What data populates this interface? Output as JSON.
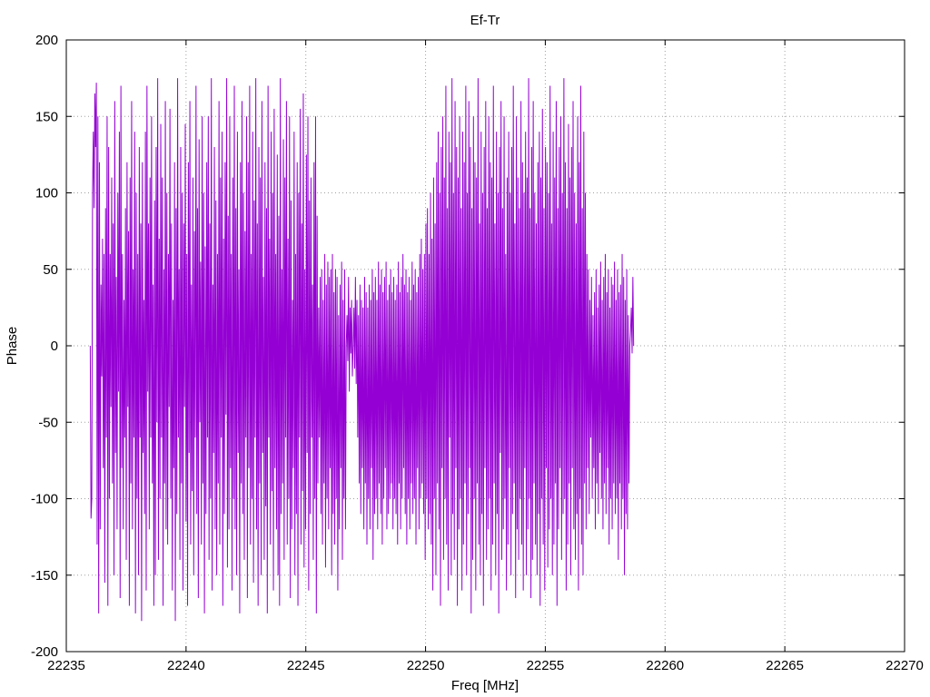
{
  "chart_data": {
    "type": "line",
    "title": "Ef-Tr",
    "xlabel": "Freq [MHz]",
    "ylabel": "Phase",
    "xlim": [
      22235,
      22270
    ],
    "ylim": [
      -200,
      200
    ],
    "xticks": [
      "22235",
      "22240",
      "22245",
      "22250",
      "22255",
      "22260",
      "22265",
      "22270"
    ],
    "yticks": [
      "200",
      "150",
      "100",
      "50",
      "0",
      "-50",
      "-100",
      "-150",
      "-200"
    ],
    "grid": true,
    "line_color": "#9400d3",
    "series": [
      {
        "x_start": 22236.0,
        "x_step": 0.032,
        "values": [
          0,
          -113,
          -100,
          100,
          140,
          90,
          165,
          130,
          172,
          -130,
          150,
          -175,
          120,
          -120,
          40,
          -20,
          70,
          -80,
          60,
          -155,
          90,
          -60,
          150,
          -170,
          130,
          -100,
          60,
          -40,
          110,
          -90,
          80,
          -150,
          160,
          -70,
          45,
          -120,
          100,
          -30,
          140,
          -165,
          170,
          -80,
          60,
          -120,
          30,
          -60,
          90,
          -140,
          120,
          -40,
          75,
          -170,
          110,
          -90,
          160,
          -120,
          50,
          -60,
          140,
          -175,
          100,
          -100,
          60,
          -150,
          130,
          -60,
          80,
          -180,
          120,
          -70,
          30,
          -110,
          140,
          -160,
          170,
          -30,
          80,
          -120,
          110,
          -60,
          150,
          -90,
          40,
          -170,
          95,
          -150,
          130,
          -50,
          175,
          -140,
          70,
          -100,
          145,
          -60,
          110,
          -170,
          50,
          -90,
          160,
          -120,
          100,
          -130,
          60,
          -40,
          155,
          -100,
          80,
          -160,
          30,
          -80,
          120,
          -180,
          90,
          -110,
          175,
          -60,
          50,
          -140,
          130,
          -90,
          100,
          -160,
          80,
          -40,
          145,
          -115,
          60,
          -170,
          120,
          -70,
          160,
          -130,
          40,
          -95,
          110,
          -150,
          75,
          -60,
          170,
          -110,
          90,
          -165,
          135,
          -50,
          55,
          -130,
          150,
          -90,
          100,
          -175,
          65,
          -110,
          120,
          -60,
          150,
          -140,
          80,
          -100,
          175,
          -160,
          40,
          -70,
          130,
          -120,
          95,
          -150,
          60,
          -90,
          160,
          -130,
          110,
          -60,
          140,
          -170,
          70,
          -110,
          120,
          -45,
          175,
          -145,
          85,
          -120,
          150,
          -80,
          60,
          -160,
          110,
          -100,
          170,
          -120,
          90,
          -150,
          140,
          -70,
          50,
          -175,
          120,
          -90,
          160,
          -110,
          100,
          -140,
          75,
          -60,
          150,
          -165,
          120,
          -80,
          170,
          -130,
          60,
          -100,
          140,
          -155,
          95,
          -60,
          175,
          -120,
          80,
          -170,
          130,
          -90,
          110,
          -150,
          160,
          -70,
          45,
          -140,
          120,
          -105,
          90,
          -175,
          170,
          -60,
          70,
          -130,
          140,
          -95,
          100,
          -160,
          155,
          -80,
          60,
          -120,
          125,
          -150,
          85,
          -170,
          175,
          -110,
          50,
          -90,
          135,
          -140,
          110,
          -60,
          160,
          -130,
          70,
          -100,
          150,
          -165,
          95,
          -120,
          30,
          -80,
          140,
          -150,
          60,
          -110,
          120,
          -170,
          100,
          -60,
          155,
          -130,
          80,
          -95,
          165,
          -145,
          50,
          -120,
          125,
          -70,
          150,
          -160,
          95,
          -110,
          110,
          -60,
          40,
          -140,
          120,
          -100,
          150,
          -175,
          85,
          -90,
          25,
          -60,
          45,
          -110,
          50,
          -130,
          30,
          -90,
          60,
          -145,
          40,
          -100,
          55,
          -120,
          45,
          -80,
          50,
          -150,
          60,
          -110,
          35,
          -130,
          50,
          -100,
          45,
          -160,
          20,
          -120,
          40,
          -80,
          55,
          -140,
          30,
          -100,
          50,
          -120,
          0,
          20,
          -10,
          45,
          -30,
          25,
          -5,
          30,
          -20,
          0,
          25,
          -15,
          45,
          -25,
          30,
          -60,
          20,
          -90,
          40,
          -110,
          30,
          -80,
          25,
          -120,
          45,
          -90,
          35,
          -130,
          25,
          -100,
          40,
          -120,
          30,
          -80,
          50,
          -140,
          35,
          -110,
          45,
          -100,
          30,
          -120,
          55,
          -90,
          40,
          -110,
          50,
          -130,
          35,
          -100,
          45,
          -80,
          55,
          -120,
          30,
          -110,
          40,
          -100,
          50,
          -90,
          35,
          -120,
          45,
          -100,
          30,
          -110,
          40,
          -130,
          55,
          -90,
          35,
          -120,
          45,
          -100,
          60,
          -80,
          40,
          -110,
          50,
          -130,
          35,
          -100,
          45,
          -120,
          30,
          -90,
          55,
          -110,
          40,
          -100,
          50,
          -130,
          35,
          -80,
          45,
          -120,
          60,
          -100,
          70,
          -90,
          50,
          -110,
          60,
          -140,
          80,
          -100,
          90,
          -120,
          60,
          -110,
          100,
          -130,
          70,
          -160,
          110,
          -100,
          80,
          -150,
          120,
          -90,
          140,
          -120,
          100,
          -170,
          130,
          -80,
          150,
          -140,
          110,
          -100,
          170,
          -130,
          90,
          -160,
          140,
          -60,
          120,
          -150,
          175,
          -110,
          100,
          -140,
          160,
          -80,
          130,
          -170,
          110,
          -120,
          150,
          -100,
          90,
          -160,
          140,
          -130,
          120,
          -90,
          170,
          -150,
          100,
          -110,
          160,
          -80,
          130,
          -175,
          90,
          -140,
          150,
          -100,
          120,
          -160,
          110,
          -90,
          175,
          -130,
          80,
          -150,
          140,
          -110,
          100,
          -170,
          130,
          -80,
          160,
          -140,
          90,
          -120,
          150,
          -100,
          120,
          -160,
          110,
          -130,
          170,
          -90,
          80,
          -150,
          140,
          -110,
          100,
          -175,
          130,
          -70,
          160,
          -140,
          90,
          -120,
          150,
          -100,
          60,
          -160,
          110,
          -130,
          140,
          -80,
          100,
          -150,
          130,
          -110,
          170,
          -90,
          80,
          -165,
          150,
          -120,
          110,
          -140,
          90,
          -100,
          160,
          -130,
          120,
          -160,
          100,
          -80,
          140,
          -150,
          110,
          -120,
          175,
          -100,
          90,
          -165,
          130,
          -140,
          160,
          -90,
          100,
          -130,
          80,
          -150,
          120,
          -110,
          140,
          -170,
          110,
          -100,
          155,
          -130,
          90,
          -160,
          130,
          -80,
          120,
          -145,
          100,
          -120,
          170,
          -100,
          80,
          -150,
          140,
          -130,
          110,
          -90,
          160,
          -170,
          90,
          -120,
          130,
          -80,
          150,
          -140,
          100,
          -110,
          175,
          -100,
          120,
          -160,
          90,
          -130,
          145,
          -90,
          110,
          -150,
          130,
          -80,
          160,
          -120,
          100,
          -140,
          80,
          -110,
          150,
          -160,
          120,
          -100,
          170,
          -130,
          90,
          -150,
          140,
          -90,
          100,
          -120,
          60,
          -80,
          50,
          -110,
          30,
          -60,
          45,
          -100,
          20,
          -80,
          35,
          -120,
          50,
          -90,
          25,
          -110,
          40,
          -70,
          55,
          -100,
          30,
          -120,
          45,
          -90,
          60,
          -110,
          35,
          -80,
          50,
          -130,
          25,
          -100,
          45,
          -120,
          40,
          -90,
          55,
          -110,
          30,
          -100,
          50,
          -140,
          35,
          -90,
          40,
          -120,
          60,
          -100,
          45,
          -150,
          30,
          -110,
          50,
          -120,
          20,
          -90,
          0,
          10,
          25,
          -5,
          45,
          0
        ],
        "max": [
          0,
          100,
          145,
          172,
          172,
          165,
          160,
          155,
          150,
          170,
          175,
          175,
          178,
          175,
          175,
          170,
          168,
          160,
          178,
          172,
          170,
          178,
          165,
          178,
          178,
          175,
          170,
          160,
          150,
          178,
          170,
          160,
          140,
          130,
          120,
          150,
          170,
          172,
          178,
          178,
          178,
          178,
          170,
          175,
          178,
          172,
          170,
          165,
          160,
          168,
          170,
          178,
          172,
          165,
          160,
          178,
          175,
          178,
          178,
          170,
          160,
          150,
          170,
          178,
          172,
          168,
          175,
          170,
          160,
          178,
          150,
          120,
          100,
          60,
          50,
          45
        ]
      }
    ]
  }
}
